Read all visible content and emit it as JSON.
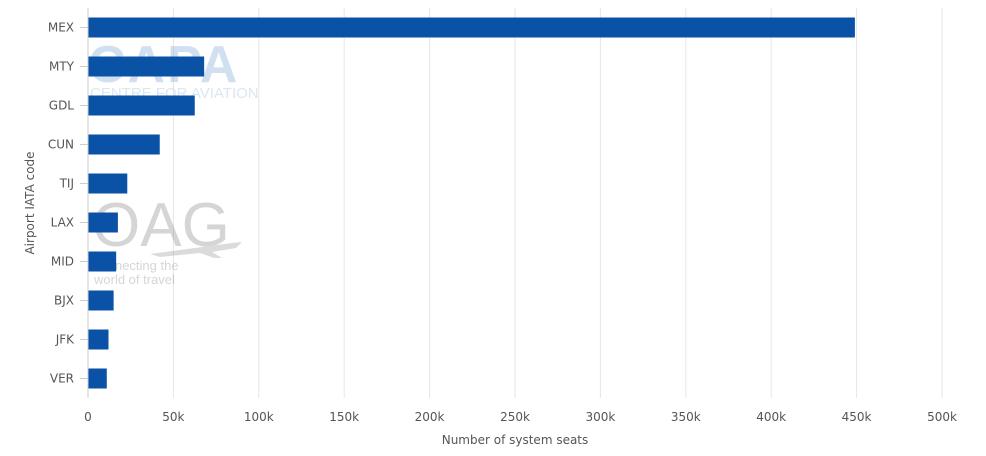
{
  "chart_data": {
    "type": "bar",
    "orientation": "horizontal",
    "categories": [
      "MEX",
      "MTY",
      "GDL",
      "CUN",
      "TIJ",
      "LAX",
      "MID",
      "BJX",
      "JFK",
      "VER"
    ],
    "values": [
      449000,
      68000,
      62500,
      42000,
      23000,
      17500,
      16500,
      15000,
      12000,
      11000
    ],
    "xlabel": "Number of system seats",
    "ylabel": "Airport IATA code",
    "xlim": [
      0,
      500000
    ],
    "xticks": [
      0,
      50000,
      100000,
      150000,
      200000,
      250000,
      300000,
      350000,
      400000,
      450000,
      500000
    ],
    "xtick_labels": [
      "0",
      "50k",
      "100k",
      "150k",
      "200k",
      "250k",
      "300k",
      "350k",
      "400k",
      "450k",
      "500k"
    ],
    "grid": true,
    "bar_color": "#0a52a5",
    "grid_color": "#e6e6e6"
  },
  "watermarks": {
    "capa_logo": "CAPA",
    "capa_sub": "CENTRE FOR AVIATION",
    "oag_logo": "OAG",
    "oag_tag_line1": "connecting the",
    "oag_tag_line2": "world of travel"
  }
}
